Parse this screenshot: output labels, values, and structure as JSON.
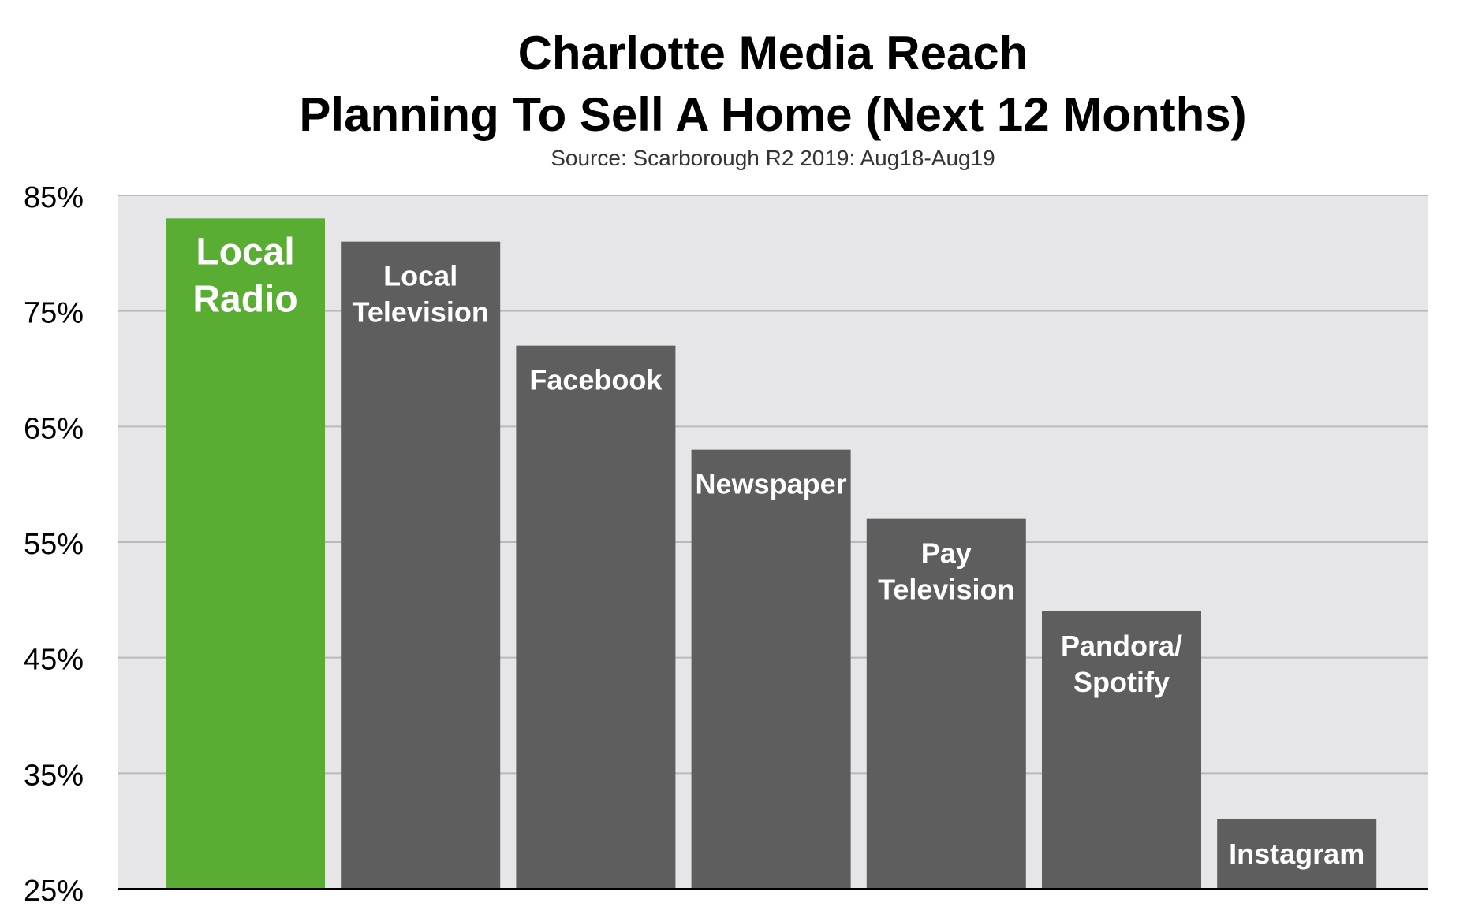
{
  "chart_data": {
    "type": "bar",
    "title": "Charlotte Media Reach",
    "subtitle": "Planning To Sell A Home (Next 12 Months)",
    "source": "Source: Scarborough R2 2019: Aug18-Aug19",
    "xlabel": "",
    "ylabel": "",
    "ylim": [
      25,
      85
    ],
    "yticks": [
      25,
      35,
      45,
      55,
      65,
      75,
      85
    ],
    "ytick_labels": [
      "25%",
      "35%",
      "45%",
      "55%",
      "65%",
      "75%",
      "85%"
    ],
    "grid": true,
    "legend": "none",
    "categories": [
      {
        "label_lines": [
          "Local",
          "Radio"
        ],
        "value": 83,
        "color": "#5aad33",
        "highlight": true
      },
      {
        "label_lines": [
          "Local",
          "Television"
        ],
        "value": 81,
        "color": "#5e5e5e"
      },
      {
        "label_lines": [
          "Facebook"
        ],
        "value": 72,
        "color": "#5e5e5e"
      },
      {
        "label_lines": [
          "Newspaper"
        ],
        "value": 63,
        "color": "#5e5e5e"
      },
      {
        "label_lines": [
          "Pay",
          "Television"
        ],
        "value": 57,
        "color": "#5e5e5e"
      },
      {
        "label_lines": [
          "Pandora/",
          "Spotify"
        ],
        "value": 49,
        "color": "#5e5e5e"
      },
      {
        "label_lines": [
          "Instagram"
        ],
        "value": 31,
        "color": "#5e5e5e"
      }
    ],
    "colors": {
      "plot_background": "#e6e6e8",
      "gridline": "#b9b9bb",
      "axis": "#000000"
    }
  }
}
